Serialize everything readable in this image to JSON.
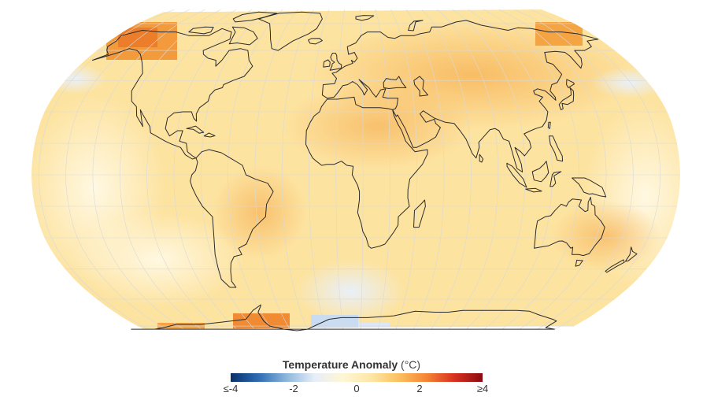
{
  "map": {
    "projection": "robinson",
    "variable": "Temperature Anomaly",
    "coastline_color": "#2b2b2b",
    "graticule_color": "#d9d9d9"
  },
  "legend": {
    "title": "Temperature Anomaly",
    "unit": "(°C)",
    "colors": [
      "#08306b",
      "#2f6cb3",
      "#8db7dc",
      "#e8eef8",
      "#fff6d6",
      "#fde7a6",
      "#fbc160",
      "#f48436",
      "#d7301f",
      "#8b0a12"
    ],
    "tick_labels": [
      "≤-4",
      "-2",
      "0",
      "2",
      "≥4"
    ]
  }
}
